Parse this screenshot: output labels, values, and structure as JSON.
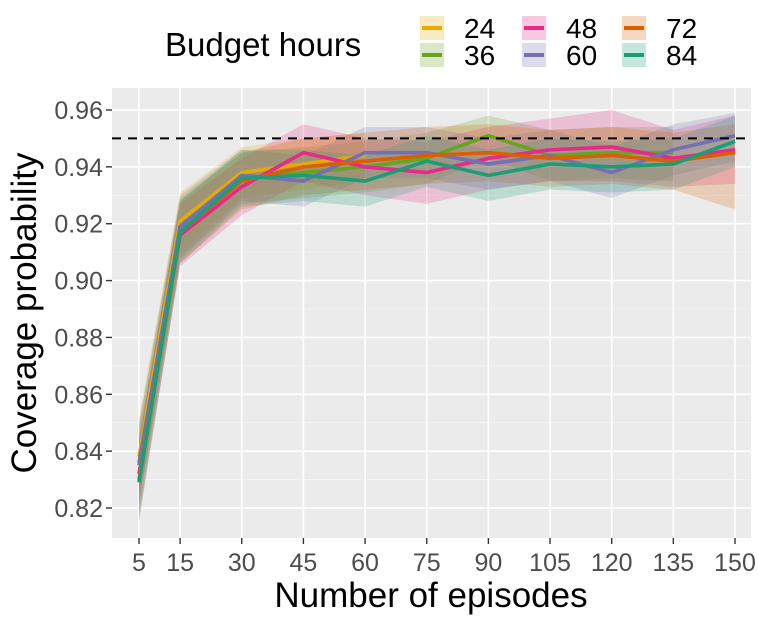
{
  "chart_data": {
    "type": "line",
    "xlabel": "Number of episodes",
    "ylabel": "Coverage probability",
    "legend_title": "Budget hours",
    "legend_position": "top",
    "x": [
      5,
      15,
      30,
      45,
      60,
      75,
      90,
      105,
      120,
      135,
      150
    ],
    "x_tick_labels": [
      "5",
      "15",
      "30",
      "45",
      "60",
      "75",
      "90",
      "105",
      "120",
      "135",
      "150"
    ],
    "ylim": [
      0.81,
      0.965
    ],
    "y_ticks": [
      0.82,
      0.84,
      0.86,
      0.88,
      0.9,
      0.92,
      0.94,
      0.96
    ],
    "y_tick_labels": [
      "0.82",
      "0.84",
      "0.86",
      "0.88",
      "0.90",
      "0.92",
      "0.94",
      "0.96"
    ],
    "reference_line": 0.95,
    "grid": true,
    "colors": {
      "panel": "#ebebeb",
      "grid_major": "#ffffff",
      "reference": "#000000"
    },
    "series": [
      {
        "name": "24",
        "color": "#e6ab02",
        "values": [
          0.838,
          0.921,
          0.938,
          0.941,
          0.944,
          null,
          null,
          null,
          null,
          null,
          null
        ],
        "lower": [
          0.824,
          0.91,
          0.929,
          0.932,
          0.935,
          null,
          null,
          null,
          null,
          null,
          null
        ],
        "upper": [
          0.852,
          0.931,
          0.947,
          0.95,
          0.952,
          null,
          null,
          null,
          null,
          null,
          null
        ]
      },
      {
        "name": "36",
        "color": "#66a61e",
        "values": [
          0.836,
          0.918,
          0.936,
          0.938,
          0.94,
          0.943,
          0.951,
          0.944,
          0.945,
          0.945,
          null
        ],
        "lower": [
          0.822,
          0.907,
          0.927,
          0.929,
          0.931,
          0.934,
          0.943,
          0.935,
          0.936,
          0.935,
          null
        ],
        "upper": [
          0.85,
          0.929,
          0.945,
          0.947,
          0.949,
          0.952,
          0.958,
          0.953,
          0.954,
          0.954,
          null
        ]
      },
      {
        "name": "48",
        "color": "#e7298a",
        "values": [
          0.832,
          0.916,
          0.933,
          0.945,
          0.94,
          0.938,
          0.943,
          0.946,
          0.947,
          0.943,
          0.946
        ],
        "lower": [
          0.818,
          0.905,
          0.923,
          0.935,
          0.93,
          0.927,
          0.932,
          0.935,
          0.935,
          0.933,
          0.934
        ],
        "upper": [
          0.846,
          0.927,
          0.943,
          0.955,
          0.95,
          0.949,
          0.954,
          0.957,
          0.96,
          0.953,
          0.958
        ]
      },
      {
        "name": "60",
        "color": "#7570b3",
        "values": [
          0.835,
          0.919,
          0.937,
          0.935,
          0.945,
          0.945,
          0.941,
          0.944,
          0.938,
          0.946,
          0.951
        ],
        "lower": [
          0.821,
          0.908,
          0.928,
          0.926,
          0.936,
          0.936,
          0.932,
          0.935,
          0.929,
          0.937,
          0.942
        ],
        "upper": [
          0.849,
          0.93,
          0.946,
          0.944,
          0.954,
          0.954,
          0.95,
          0.953,
          0.947,
          0.955,
          0.959
        ]
      },
      {
        "name": "72",
        "color": "#d95f02",
        "values": [
          0.83,
          0.917,
          0.935,
          0.94,
          0.942,
          0.944,
          0.945,
          0.943,
          0.944,
          0.942,
          0.945
        ],
        "lower": [
          0.816,
          0.906,
          0.925,
          0.93,
          0.932,
          0.934,
          0.935,
          0.933,
          0.934,
          0.932,
          0.925
        ],
        "upper": [
          0.844,
          0.928,
          0.945,
          0.95,
          0.952,
          0.954,
          0.955,
          0.953,
          0.954,
          0.952,
          0.955
        ]
      },
      {
        "name": "84",
        "color": "#1b9e77",
        "values": [
          0.829,
          0.917,
          0.936,
          0.937,
          0.935,
          0.942,
          0.937,
          0.941,
          0.94,
          0.941,
          0.949
        ],
        "lower": [
          0.815,
          0.906,
          0.926,
          0.928,
          0.926,
          0.933,
          0.928,
          0.932,
          0.931,
          0.932,
          0.94
        ],
        "upper": [
          0.843,
          0.928,
          0.946,
          0.946,
          0.944,
          0.951,
          0.946,
          0.95,
          0.949,
          0.95,
          0.958
        ]
      }
    ]
  }
}
